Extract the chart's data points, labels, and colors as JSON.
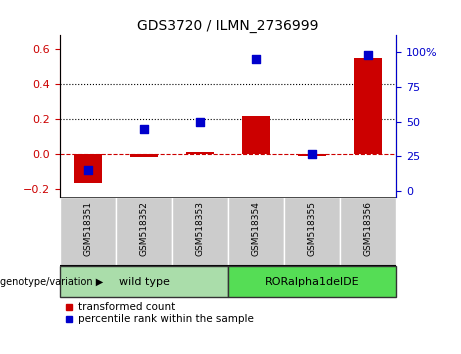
{
  "title": "GDS3720 / ILMN_2736999",
  "samples": [
    "GSM518351",
    "GSM518352",
    "GSM518353",
    "GSM518354",
    "GSM518355",
    "GSM518356"
  ],
  "transformed_count": [
    -0.17,
    -0.02,
    0.01,
    0.22,
    -0.01,
    0.55
  ],
  "percentile_rank": [
    15,
    45,
    50,
    95,
    27,
    98
  ],
  "bar_color": "#cc0000",
  "dot_color": "#0000cc",
  "ylim_left": [
    -0.25,
    0.68
  ],
  "ylim_right": [
    -4.5,
    112
  ],
  "yticks_left": [
    -0.2,
    0.0,
    0.2,
    0.4,
    0.6
  ],
  "yticks_right": [
    0,
    25,
    50,
    75,
    100
  ],
  "ytick_labels_right": [
    "0",
    "25",
    "50",
    "75",
    "100%"
  ],
  "hlines": [
    0.0,
    0.2,
    0.4
  ],
  "hline_colors": [
    "#cc0000",
    "#000000",
    "#000000"
  ],
  "hline_styles": [
    "--",
    ":",
    ":"
  ],
  "groups": [
    {
      "label": "wild type",
      "indices": [
        0,
        1,
        2
      ],
      "color": "#aaddaa"
    },
    {
      "label": "RORalpha1delDE",
      "indices": [
        3,
        4,
        5
      ],
      "color": "#55dd55"
    }
  ],
  "group_label_prefix": "genotype/variation",
  "legend": [
    {
      "label": "transformed count",
      "color": "#cc0000",
      "marker": "s"
    },
    {
      "label": "percentile rank within the sample",
      "color": "#0000cc",
      "marker": "s"
    }
  ],
  "left_tick_color": "#cc0000",
  "right_tick_color": "#0000cc",
  "bar_width": 0.5,
  "dot_size": 40,
  "background_color": "#ffffff"
}
